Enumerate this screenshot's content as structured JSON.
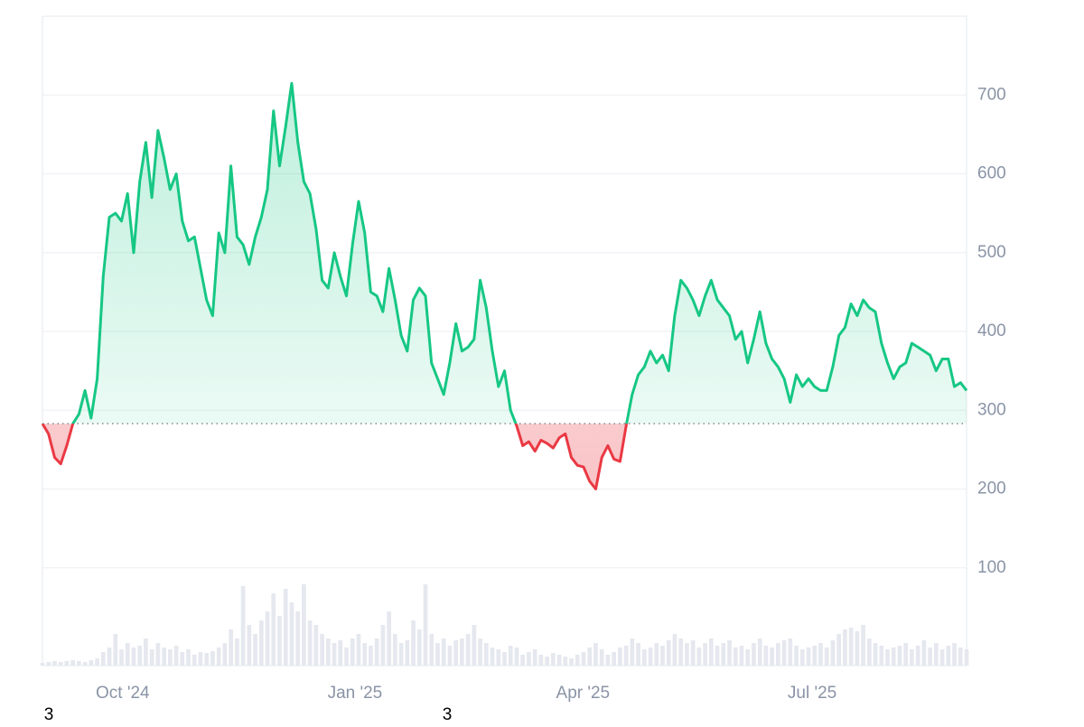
{
  "chart_data": {
    "type": "line",
    "series": [
      {
        "name": "Price",
        "color": "#16c784",
        "color_below": "#ea3943",
        "values": [
          283,
          270,
          240,
          232,
          255,
          283,
          295,
          325,
          290,
          340,
          470,
          545,
          550,
          540,
          575,
          500,
          590,
          640,
          570,
          655,
          620,
          580,
          600,
          540,
          515,
          520,
          480,
          440,
          420,
          525,
          500,
          610,
          520,
          510,
          485,
          520,
          545,
          580,
          680,
          610,
          660,
          715,
          640,
          590,
          575,
          530,
          465,
          455,
          500,
          470,
          445,
          510,
          565,
          525,
          450,
          445,
          425,
          480,
          440,
          395,
          375,
          440,
          455,
          445,
          360,
          340,
          320,
          360,
          410,
          375,
          380,
          390,
          465,
          430,
          375,
          330,
          350,
          300,
          280,
          255,
          260,
          248,
          262,
          258,
          252,
          265,
          270,
          240,
          230,
          228,
          210,
          200,
          240,
          255,
          238,
          235,
          280,
          320,
          345,
          355,
          375,
          360,
          370,
          350,
          420,
          465,
          455,
          440,
          420,
          445,
          465,
          440,
          430,
          420,
          390,
          400,
          360,
          390,
          425,
          385,
          365,
          355,
          340,
          310,
          345,
          330,
          340,
          330,
          325,
          325,
          355,
          395,
          405,
          435,
          420,
          440,
          430,
          425,
          385,
          360,
          340,
          355,
          360,
          385,
          380,
          375,
          370,
          350,
          365,
          365,
          330,
          335,
          325
        ]
      }
    ],
    "volume": {
      "color": "#e5e8ee",
      "ylim": [
        0,
        100
      ],
      "values": [
        3,
        4,
        5,
        4,
        5,
        6,
        5,
        4,
        6,
        8,
        15,
        20,
        35,
        18,
        25,
        20,
        22,
        30,
        18,
        25,
        20,
        18,
        22,
        15,
        18,
        12,
        15,
        14,
        16,
        20,
        25,
        40,
        30,
        88,
        45,
        35,
        50,
        60,
        80,
        55,
        85,
        70,
        60,
        90,
        50,
        45,
        35,
        30,
        25,
        28,
        20,
        30,
        35,
        25,
        22,
        30,
        45,
        60,
        35,
        25,
        28,
        50,
        40,
        90,
        35,
        25,
        30,
        22,
        28,
        30,
        35,
        45,
        30,
        25,
        20,
        18,
        15,
        22,
        20,
        12,
        15,
        18,
        12,
        10,
        14,
        12,
        10,
        8,
        12,
        15,
        20,
        25,
        18,
        12,
        15,
        20,
        22,
        30,
        25,
        18,
        20,
        25,
        22,
        28,
        35,
        30,
        25,
        28,
        20,
        25,
        30,
        22,
        25,
        28,
        20,
        22,
        18,
        25,
        30,
        22,
        20,
        25,
        28,
        30,
        22,
        18,
        20,
        22,
        25,
        20,
        28,
        35,
        40,
        42,
        38,
        45,
        30,
        25,
        22,
        18,
        20,
        22,
        25,
        18,
        22,
        28,
        20,
        25,
        18,
        22,
        25,
        20,
        18
      ]
    },
    "baseline": 283,
    "xlim": [
      0,
      152
    ],
    "xticks": [
      {
        "value": 13.2,
        "label": "Oct '24"
      },
      {
        "value": 51.4,
        "label": "Jan '25"
      },
      {
        "value": 88.9,
        "label": "Apr '25"
      },
      {
        "value": 126.6,
        "label": "Jul '25"
      }
    ],
    "ylim": [
      0,
      800
    ],
    "yticks": [
      100,
      200,
      300,
      400,
      500,
      600,
      700
    ],
    "grid": true,
    "annotations": [
      "3",
      "3"
    ]
  }
}
